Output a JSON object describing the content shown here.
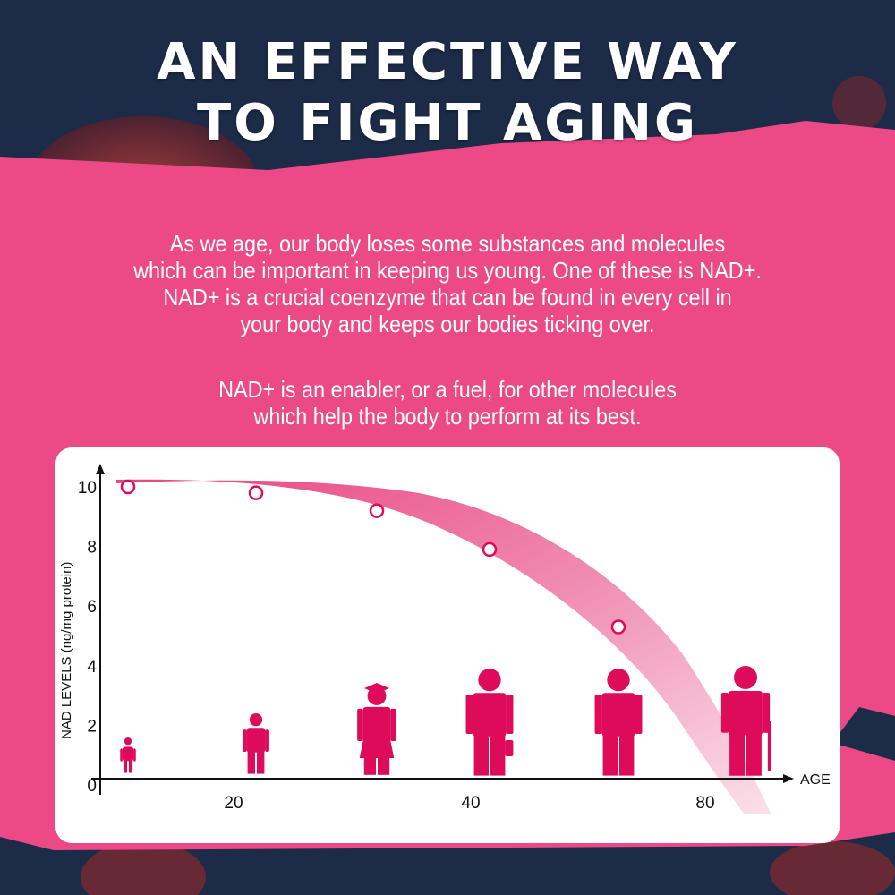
{
  "header": {
    "title_line1": "AN EFFECTIVE WAY",
    "title_line2": "TO FIGHT AGING"
  },
  "intro": {
    "paragraph1": [
      "As we age, our body loses some substances and molecules",
      "which can be important in keeping us young. One of these is NAD+.",
      "NAD+ is a crucial coenzyme that can be found in every cell in",
      "your body and keeps our bodies ticking over."
    ],
    "paragraph2": [
      "NAD+ is an enabler, or a fuel, for other molecules",
      "which help the body to perform at its best."
    ]
  },
  "colors": {
    "accent": "#ec4a87",
    "figure": "#de0a5a",
    "background": "#1b2a45"
  },
  "chart_data": {
    "type": "line",
    "title": "",
    "xlabel": "AGE",
    "ylabel": "NAD LEVELS (ng/mg protein)",
    "ylim": [
      0,
      10
    ],
    "y_ticks": [
      "0",
      "2",
      "4",
      "6",
      "8",
      "10"
    ],
    "x_ticks": [
      "20",
      "40",
      "80"
    ],
    "points": [
      10,
      9.8,
      9.2,
      7.9,
      5.3
    ],
    "figures": [
      "baby",
      "child",
      "graduate",
      "businessman",
      "man-in-suit",
      "elderly-with-cane"
    ],
    "grid": false
  }
}
